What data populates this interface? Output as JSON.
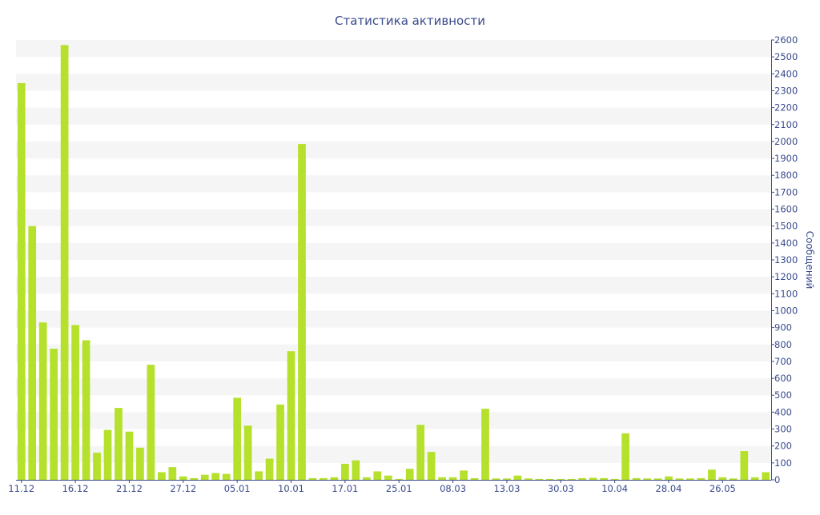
{
  "chart_data": {
    "type": "bar",
    "title": "Статистика активности",
    "ylabel": "Сообщений",
    "xlabel": "",
    "ylim": [
      0,
      2600
    ],
    "y_ticks": [
      0,
      100,
      200,
      300,
      400,
      500,
      600,
      700,
      800,
      900,
      1000,
      1100,
      1200,
      1300,
      1400,
      1500,
      1600,
      1700,
      1800,
      1900,
      2000,
      2100,
      2200,
      2300,
      2400,
      2500,
      2600
    ],
    "y_axis_position": "right",
    "grid": "alternating horizontal bands",
    "x_tick_labels": [
      {
        "label": "11.12",
        "index": 0
      },
      {
        "label": "16.12",
        "index": 5
      },
      {
        "label": "21.12",
        "index": 10
      },
      {
        "label": "27.12",
        "index": 15
      },
      {
        "label": "05.01",
        "index": 20
      },
      {
        "label": "10.01",
        "index": 25
      },
      {
        "label": "17.01",
        "index": 30
      },
      {
        "label": "25.01",
        "index": 35
      },
      {
        "label": "08.03",
        "index": 40
      },
      {
        "label": "13.03",
        "index": 45
      },
      {
        "label": "30.03",
        "index": 50
      },
      {
        "label": "10.04",
        "index": 55
      },
      {
        "label": "28.04",
        "index": 60
      },
      {
        "label": "26.05",
        "index": 65
      }
    ],
    "values": [
      2345,
      1500,
      930,
      775,
      2570,
      915,
      825,
      160,
      295,
      425,
      285,
      190,
      680,
      45,
      75,
      20,
      10,
      30,
      40,
      35,
      485,
      320,
      50,
      125,
      445,
      760,
      1985,
      10,
      10,
      15,
      95,
      115,
      15,
      50,
      25,
      5,
      65,
      325,
      165,
      15,
      15,
      55,
      10,
      420,
      8,
      8,
      25,
      8,
      5,
      5,
      5,
      5,
      10,
      12,
      10,
      5,
      275,
      10,
      8,
      8,
      20,
      8,
      8,
      10,
      60,
      15,
      8,
      170,
      15,
      45
    ],
    "colors": {
      "bar": "#b5e02b",
      "text": "#3a4a8c",
      "band": "#f5f5f5",
      "axis": "#3a4a8c"
    }
  }
}
